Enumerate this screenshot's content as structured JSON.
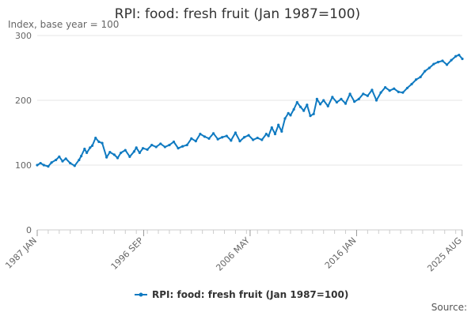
{
  "chart_data": {
    "type": "line",
    "title": "RPI: food: fresh fruit (Jan 1987=100)",
    "subtitle": "Index, base year = 100",
    "source_label": "Source:",
    "ylim": [
      0,
      300
    ],
    "yticks": [
      0,
      100,
      200,
      300
    ],
    "xlim": [
      1987.0,
      2025.6
    ],
    "xtick_labels": [
      {
        "label": "1987 JAN",
        "x": 1987.0
      },
      {
        "label": "1996 SEP",
        "x": 1996.67
      },
      {
        "label": "2006 MAY",
        "x": 2006.33
      },
      {
        "label": "2016 JAN",
        "x": 2016.0
      },
      {
        "label": "2025 AUG",
        "x": 2025.58
      }
    ],
    "grid": true,
    "legend_position": "bottom",
    "series": [
      {
        "name": "RPI: food: fresh fruit (Jan 1987=100)",
        "color": "#0f7ac1",
        "x": [
          1987.0,
          1987.3,
          1987.6,
          1988.0,
          1988.3,
          1988.7,
          1989.0,
          1989.3,
          1989.6,
          1990.0,
          1990.4,
          1990.8,
          1991.0,
          1991.3,
          1991.5,
          1991.8,
          1992.0,
          1992.3,
          1992.6,
          1992.9,
          1993.3,
          1993.6,
          1994.0,
          1994.3,
          1994.6,
          1995.0,
          1995.4,
          1995.8,
          1996.0,
          1996.3,
          1996.6,
          1997.0,
          1997.4,
          1997.8,
          1998.2,
          1998.6,
          1999.0,
          1999.4,
          1999.8,
          2000.2,
          2000.6,
          2001.0,
          2001.4,
          2001.8,
          2002.2,
          2002.6,
          2003.0,
          2003.4,
          2003.8,
          2004.2,
          2004.6,
          2005.0,
          2005.4,
          2005.8,
          2006.2,
          2006.6,
          2007.0,
          2007.4,
          2007.8,
          2008.0,
          2008.3,
          2008.6,
          2008.9,
          2009.2,
          2009.5,
          2009.8,
          2010.0,
          2010.3,
          2010.6,
          2010.9,
          2011.2,
          2011.5,
          2011.8,
          2012.1,
          2012.4,
          2012.7,
          2013.0,
          2013.4,
          2013.8,
          2014.2,
          2014.6,
          2015.0,
          2015.4,
          2015.8,
          2016.2,
          2016.6,
          2017.0,
          2017.4,
          2017.8,
          2018.2,
          2018.6,
          2019.0,
          2019.4,
          2019.8,
          2020.2,
          2020.6,
          2021.0,
          2021.4,
          2021.8,
          2022.2,
          2022.6,
          2023.0,
          2023.4,
          2023.8,
          2024.2,
          2024.6,
          2025.0,
          2025.3,
          2025.6
        ],
        "values": [
          100,
          103,
          100,
          98,
          104,
          108,
          113,
          106,
          110,
          103,
          99,
          108,
          114,
          125,
          119,
          127,
          130,
          142,
          136,
          134,
          112,
          120,
          116,
          111,
          119,
          123,
          113,
          121,
          127,
          119,
          126,
          124,
          131,
          128,
          133,
          128,
          131,
          136,
          126,
          129,
          131,
          141,
          137,
          148,
          144,
          141,
          149,
          140,
          143,
          145,
          138,
          150,
          137,
          143,
          146,
          139,
          142,
          139,
          148,
          145,
          158,
          148,
          162,
          152,
          172,
          180,
          177,
          186,
          197,
          190,
          184,
          193,
          176,
          179,
          202,
          194,
          200,
          191,
          205,
          197,
          202,
          195,
          210,
          198,
          202,
          210,
          207,
          216,
          200,
          212,
          220,
          215,
          218,
          213,
          212,
          219,
          225,
          232,
          236,
          245,
          250,
          256,
          259,
          261,
          255,
          262,
          268,
          270,
          264
        ]
      }
    ]
  }
}
